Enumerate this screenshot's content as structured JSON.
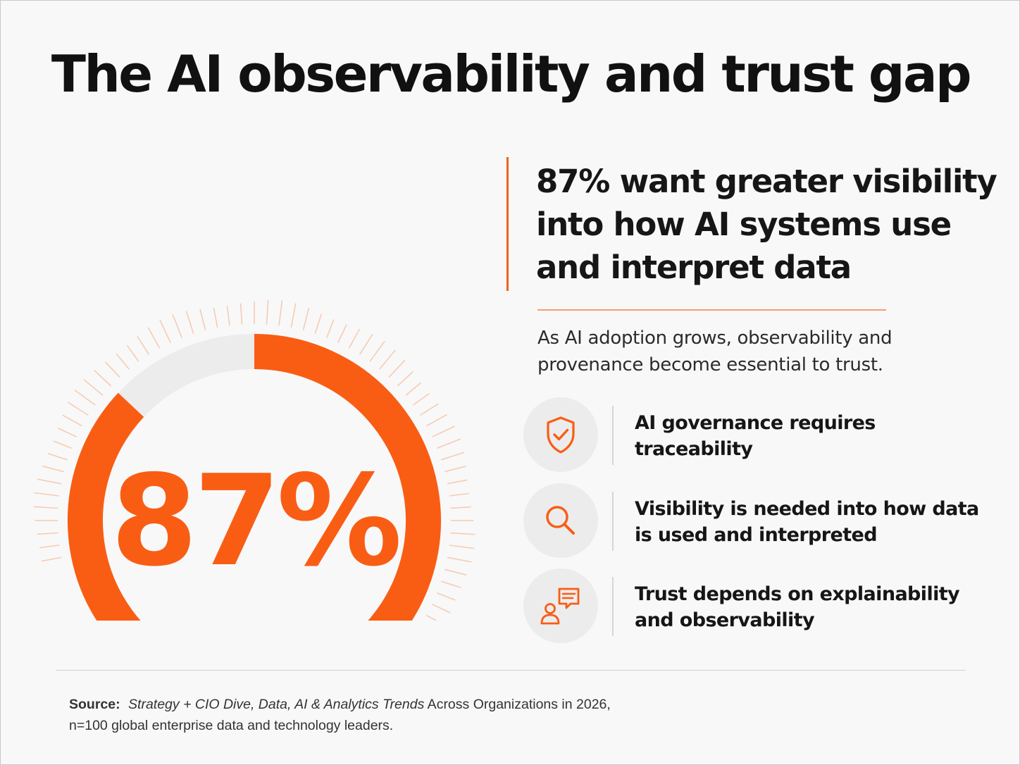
{
  "title": "The AI observability and trust gap",
  "colors": {
    "accent": "#f95d14",
    "track": "#ececec",
    "rays": "#f6a87c",
    "text": "#161616"
  },
  "chart_data": {
    "type": "pie",
    "style": "donut",
    "value_label": "87%",
    "values": [
      87,
      13
    ],
    "colors": [
      "#f95d14",
      "#ececec"
    ]
  },
  "headline": "87% want greater visibility into how AI systems use and interpret data",
  "subtext": "As AI adoption grows, observability and provenance become essential to trust.",
  "points": [
    {
      "icon": "shield-check-icon",
      "text": "AI governance requires traceability"
    },
    {
      "icon": "magnifier-icon",
      "text": "Visibility is needed into how data is used and interpreted"
    },
    {
      "icon": "person-speech-bubble-icon",
      "text": "Trust depends on explainability and observability"
    }
  ],
  "source": {
    "label": "Source:",
    "italic": "Strategy + CIO Dive, Data, AI & Analytics Trends",
    "rest": " Across Organizations in 2026,",
    "line2": "n=100 global enterprise data and technology leaders."
  }
}
